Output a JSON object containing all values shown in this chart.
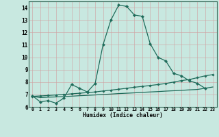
{
  "xlabel": "Humidex (Indice chaleur)",
  "background_color": "#c8e8e0",
  "grid_color": "#b0c8c0",
  "line_color": "#1e6b5a",
  "xlim": [
    -0.5,
    23.5
  ],
  "ylim": [
    6,
    14.5
  ],
  "xticks": [
    0,
    1,
    2,
    3,
    4,
    5,
    6,
    7,
    8,
    9,
    10,
    11,
    12,
    13,
    14,
    15,
    16,
    17,
    18,
    19,
    20,
    21,
    22,
    23
  ],
  "yticks": [
    6,
    7,
    8,
    9,
    10,
    11,
    12,
    13,
    14
  ],
  "line1_x": [
    0,
    1,
    2,
    3,
    4,
    5,
    6,
    7,
    8,
    9,
    10,
    11,
    12,
    13,
    14,
    15,
    16,
    17,
    18,
    19,
    20,
    21,
    22
  ],
  "line1_y": [
    6.9,
    6.4,
    6.5,
    6.3,
    6.7,
    7.8,
    7.5,
    7.2,
    7.9,
    11.0,
    13.0,
    14.2,
    14.1,
    13.4,
    13.3,
    11.1,
    10.0,
    9.7,
    8.7,
    8.5,
    8.1,
    7.9,
    7.5
  ],
  "line2_x": [
    0,
    1,
    2,
    3,
    4,
    5,
    6,
    7,
    8,
    9,
    10,
    11,
    12,
    13,
    14,
    15,
    16,
    17,
    18,
    19,
    20,
    21,
    22,
    23
  ],
  "line2_y": [
    6.85,
    6.88,
    6.92,
    6.96,
    7.0,
    7.05,
    7.1,
    7.15,
    7.2,
    7.28,
    7.35,
    7.42,
    7.5,
    7.58,
    7.65,
    7.72,
    7.8,
    7.88,
    8.0,
    8.12,
    8.2,
    8.35,
    8.5,
    8.6
  ],
  "line3_x": [
    0,
    1,
    2,
    3,
    4,
    5,
    6,
    7,
    8,
    9,
    10,
    11,
    12,
    13,
    14,
    15,
    16,
    17,
    18,
    19,
    20,
    21,
    22,
    23
  ],
  "line3_y": [
    6.85,
    6.75,
    6.78,
    6.8,
    6.83,
    6.86,
    6.9,
    6.93,
    6.96,
    7.0,
    7.03,
    7.07,
    7.1,
    7.13,
    7.17,
    7.2,
    7.23,
    7.27,
    7.3,
    7.33,
    7.37,
    7.4,
    7.5,
    7.6
  ]
}
